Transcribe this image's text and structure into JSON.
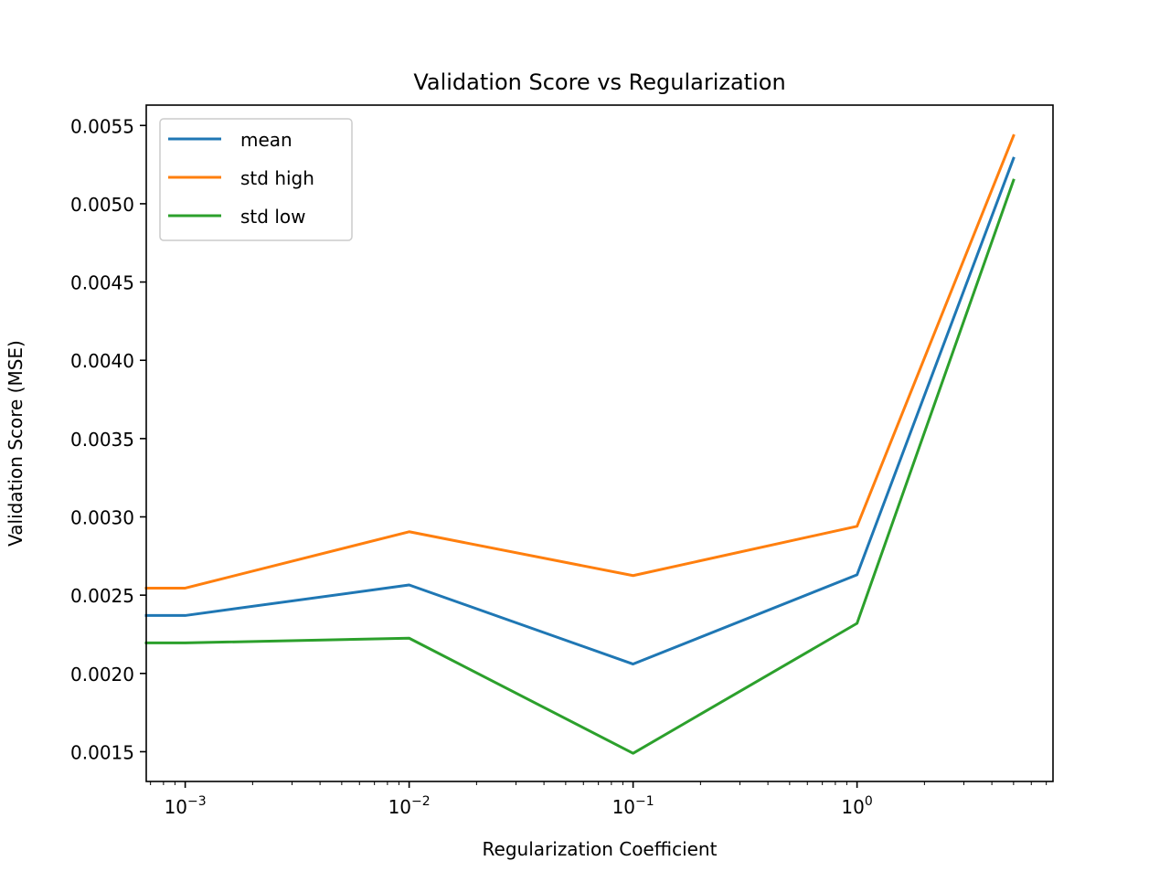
{
  "chart_data": {
    "type": "line",
    "title": "Validation Score vs Regularization",
    "xlabel": "Regularization Coefficient",
    "ylabel": "Validation Score (MSE)",
    "xscale": "log",
    "xlim": [
      0.00067,
      7.5
    ],
    "ylim": [
      0.00131,
      0.00563
    ],
    "x": [
      0.00067,
      0.001,
      0.01,
      0.1,
      1,
      5
    ],
    "series": [
      {
        "name": "mean",
        "color": "#1f77b4",
        "values": [
          0.00237,
          0.00237,
          0.002565,
          0.00206,
          0.00263,
          0.00529
        ]
      },
      {
        "name": "std high",
        "color": "#ff7f0e",
        "values": [
          0.002545,
          0.002545,
          0.002905,
          0.002625,
          0.00294,
          0.005435
        ]
      },
      {
        "name": "std low",
        "color": "#2ca02c",
        "values": [
          0.002195,
          0.002195,
          0.002225,
          0.00149,
          0.00232,
          0.00515
        ]
      }
    ],
    "yticks": [
      0.0015,
      0.002,
      0.0025,
      0.003,
      0.0035,
      0.004,
      0.0045,
      0.005,
      0.0055
    ],
    "ytick_labels": [
      "0.0015",
      "0.0020",
      "0.0025",
      "0.0030",
      "0.0035",
      "0.0040",
      "0.0045",
      "0.0050",
      "0.0055"
    ],
    "xticks": [
      {
        "value": 0.001,
        "base": "10",
        "exp": "−3"
      },
      {
        "value": 0.01,
        "base": "10",
        "exp": "−2"
      },
      {
        "value": 0.1,
        "base": "10",
        "exp": "−1"
      },
      {
        "value": 1,
        "base": "10",
        "exp": "0"
      }
    ],
    "grid": false,
    "legend_position": "top-left"
  }
}
